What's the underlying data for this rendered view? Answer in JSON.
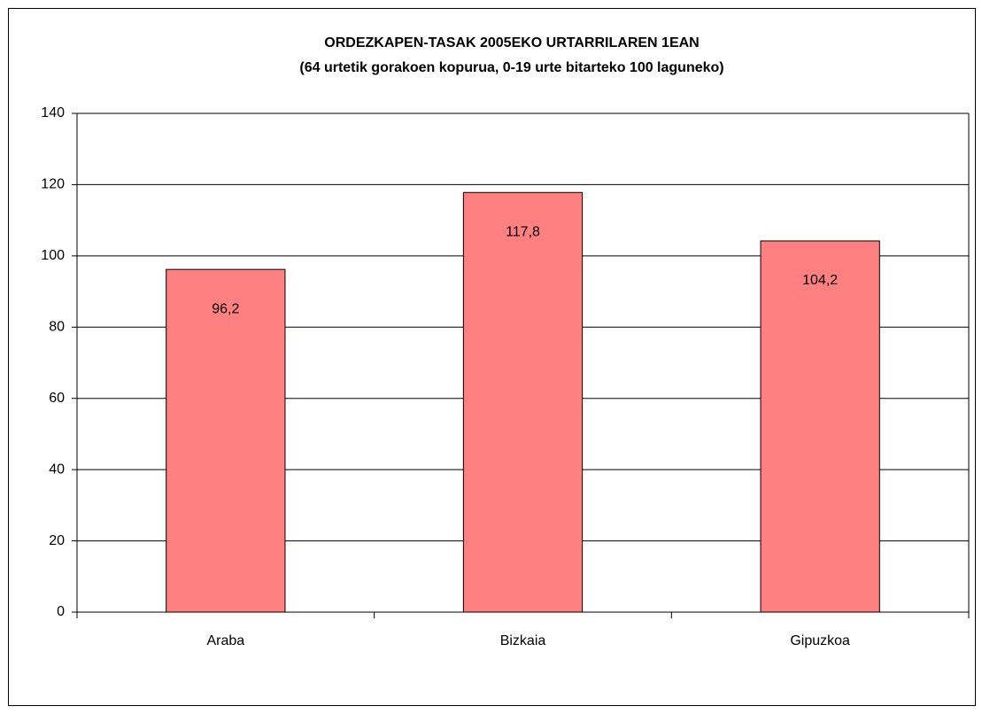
{
  "chart_data": {
    "type": "bar",
    "title": "ORDEZKAPEN-TASAK 2005EKO URTARRILAREN 1EAN",
    "subtitle": "(64 urtetik gorakoen kopurua, 0-19 urte bitarteko 100 laguneko)",
    "categories": [
      "Araba",
      "Bizkaia",
      "Gipuzkoa"
    ],
    "values": [
      96.2,
      117.8,
      104.2
    ],
    "value_labels": [
      "96,2",
      "117,8",
      "104,2"
    ],
    "color": "#ff8080",
    "ylim": [
      0,
      140
    ],
    "yticks": [
      0,
      20,
      40,
      60,
      80,
      100,
      120,
      140
    ],
    "grid": true
  }
}
